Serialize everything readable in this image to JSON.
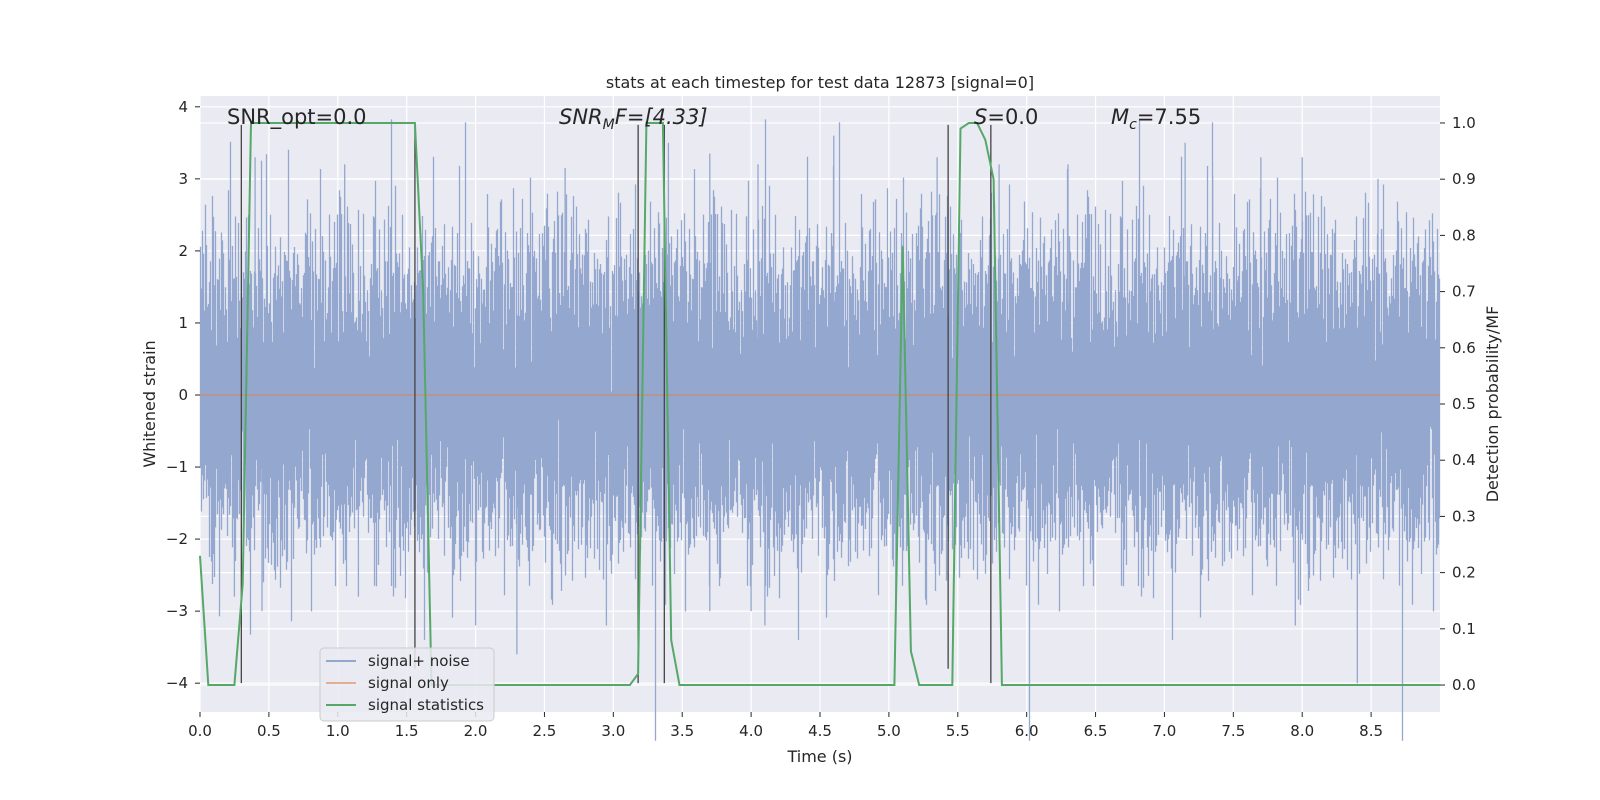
{
  "chart_data": {
    "type": "line",
    "title": "stats at each timestep for test data 12873 [signal=0]",
    "xlabel": "Time (s)",
    "ylabel": "Whitened strain",
    "ylabel_right": "Detection probability/MF",
    "xlim": [
      0.0,
      9.0
    ],
    "ylim": [
      -4.4,
      4.15
    ],
    "ylim_right": [
      -0.048,
      1.048
    ],
    "xticks": [
      0.0,
      0.5,
      1.0,
      1.5,
      2.0,
      2.5,
      3.0,
      3.5,
      4.0,
      4.5,
      5.0,
      5.5,
      6.0,
      6.5,
      7.0,
      7.5,
      8.0,
      8.5
    ],
    "xtick_labels": [
      "0.0",
      "0.5",
      "1.0",
      "1.5",
      "2.0",
      "2.5",
      "3.0",
      "3.5",
      "4.0",
      "4.5",
      "5.0",
      "5.5",
      "6.0",
      "6.5",
      "7.0",
      "7.5",
      "8.0",
      "8.5"
    ],
    "yticks": [
      -4,
      -3,
      -2,
      -1,
      0,
      1,
      2,
      3,
      4
    ],
    "ytick_labels": [
      "−4",
      "−3",
      "−2",
      "−1",
      "0",
      "1",
      "2",
      "3",
      "4"
    ],
    "yticks_right": [
      0.0,
      0.1,
      0.2,
      0.3,
      0.4,
      0.5,
      0.6,
      0.7,
      0.8,
      0.9,
      1.0
    ],
    "ytick_right_labels": [
      "0.0",
      "0.1",
      "0.2",
      "0.3",
      "0.4",
      "0.5",
      "0.6",
      "0.7",
      "0.8",
      "0.9",
      "1.0"
    ],
    "annotations": {
      "snr_opt": "SNR_opt=0.0",
      "snr_mf_prefix": "SNR",
      "snr_mf_sub": "M",
      "snr_mf_suffix": "F=[4.33]",
      "s_prefix": "S",
      "s_suffix": "=0.0",
      "mc_prefix": "M",
      "mc_sub": "c",
      "mc_suffix": "=7.55"
    },
    "legend": {
      "placement": "lower-left",
      "entries": [
        "signal+ noise",
        "signal only",
        "signal statistics"
      ]
    },
    "noise": {
      "name": "signal+ noise",
      "sample_rate": 2048,
      "sigma": 1.0,
      "max_peaks": [
        [
          0.4,
          3.3
        ],
        [
          1.05,
          3.2
        ],
        [
          2.65,
          3.15
        ],
        [
          3.4,
          3.5
        ],
        [
          3.7,
          3.35
        ],
        [
          4.6,
          3.6
        ],
        [
          4.05,
          3.2
        ],
        [
          5.8,
          3.2
        ],
        [
          6.3,
          3.2
        ],
        [
          7.15,
          3.5
        ],
        [
          7.35,
          3.05
        ],
        [
          7.7,
          3.3
        ],
        [
          8.0,
          3.3
        ],
        [
          8.55,
          3.0
        ],
        [
          5.35,
          3.3
        ]
      ],
      "min_peaks": [
        [
          0.25,
          -2.8
        ],
        [
          0.45,
          -3.0
        ],
        [
          1.15,
          -2.8
        ],
        [
          2.0,
          -3.2
        ],
        [
          2.3,
          -3.6
        ],
        [
          2.95,
          -3.2
        ],
        [
          4.1,
          -3.2
        ],
        [
          4.0,
          -3.0
        ],
        [
          5.05,
          -3.1
        ],
        [
          7.95,
          -3.2
        ],
        [
          8.4,
          -4.0
        ],
        [
          3.7,
          -3.0
        ]
      ]
    },
    "signal_only": {
      "name": "signal only",
      "value": 0.0
    },
    "statistics": {
      "name": "signal statistics",
      "x": [
        0.0,
        0.06,
        0.25,
        0.31,
        0.37,
        0.44,
        0.5,
        1.5,
        1.56,
        1.62,
        1.68,
        1.74,
        3.12,
        3.18,
        3.24,
        3.3,
        3.36,
        3.42,
        3.48,
        5.04,
        5.1,
        5.16,
        5.22,
        5.4,
        5.46,
        5.52,
        5.58,
        5.64,
        5.7,
        5.76,
        5.82,
        9.0
      ],
      "y": [
        0.23,
        0.0,
        0.0,
        0.18,
        1.0,
        1.0,
        1.0,
        1.0,
        1.0,
        0.7,
        0.0,
        0.0,
        0.0,
        0.02,
        1.0,
        1.0,
        1.0,
        0.08,
        0.0,
        0.0,
        0.78,
        0.06,
        0.0,
        0.0,
        0.0,
        0.99,
        1.0,
        1.0,
        0.97,
        0.9,
        0.0,
        0.0
      ]
    },
    "vlines": [
      {
        "x": 0.3,
        "y0": -4.0,
        "y1": 3.75
      },
      {
        "x": 1.56,
        "y0": -3.8,
        "y1": 3.75
      },
      {
        "x": 3.18,
        "y0": -4.0,
        "y1": 3.75
      },
      {
        "x": 3.37,
        "y0": -4.0,
        "y1": 3.75
      },
      {
        "x": 5.43,
        "y0": -3.8,
        "y1": 3.75
      },
      {
        "x": 5.74,
        "y0": -4.0,
        "y1": 3.75
      }
    ],
    "colors": {
      "figure_bg": "#ffffff",
      "axes_bg": "#eaeaf2",
      "grid": "#ffffff",
      "noise": "#94a7cf",
      "signal_only": "#dd8452",
      "statistics": "#55a868",
      "vline": "#444444",
      "text": "#262626"
    }
  }
}
